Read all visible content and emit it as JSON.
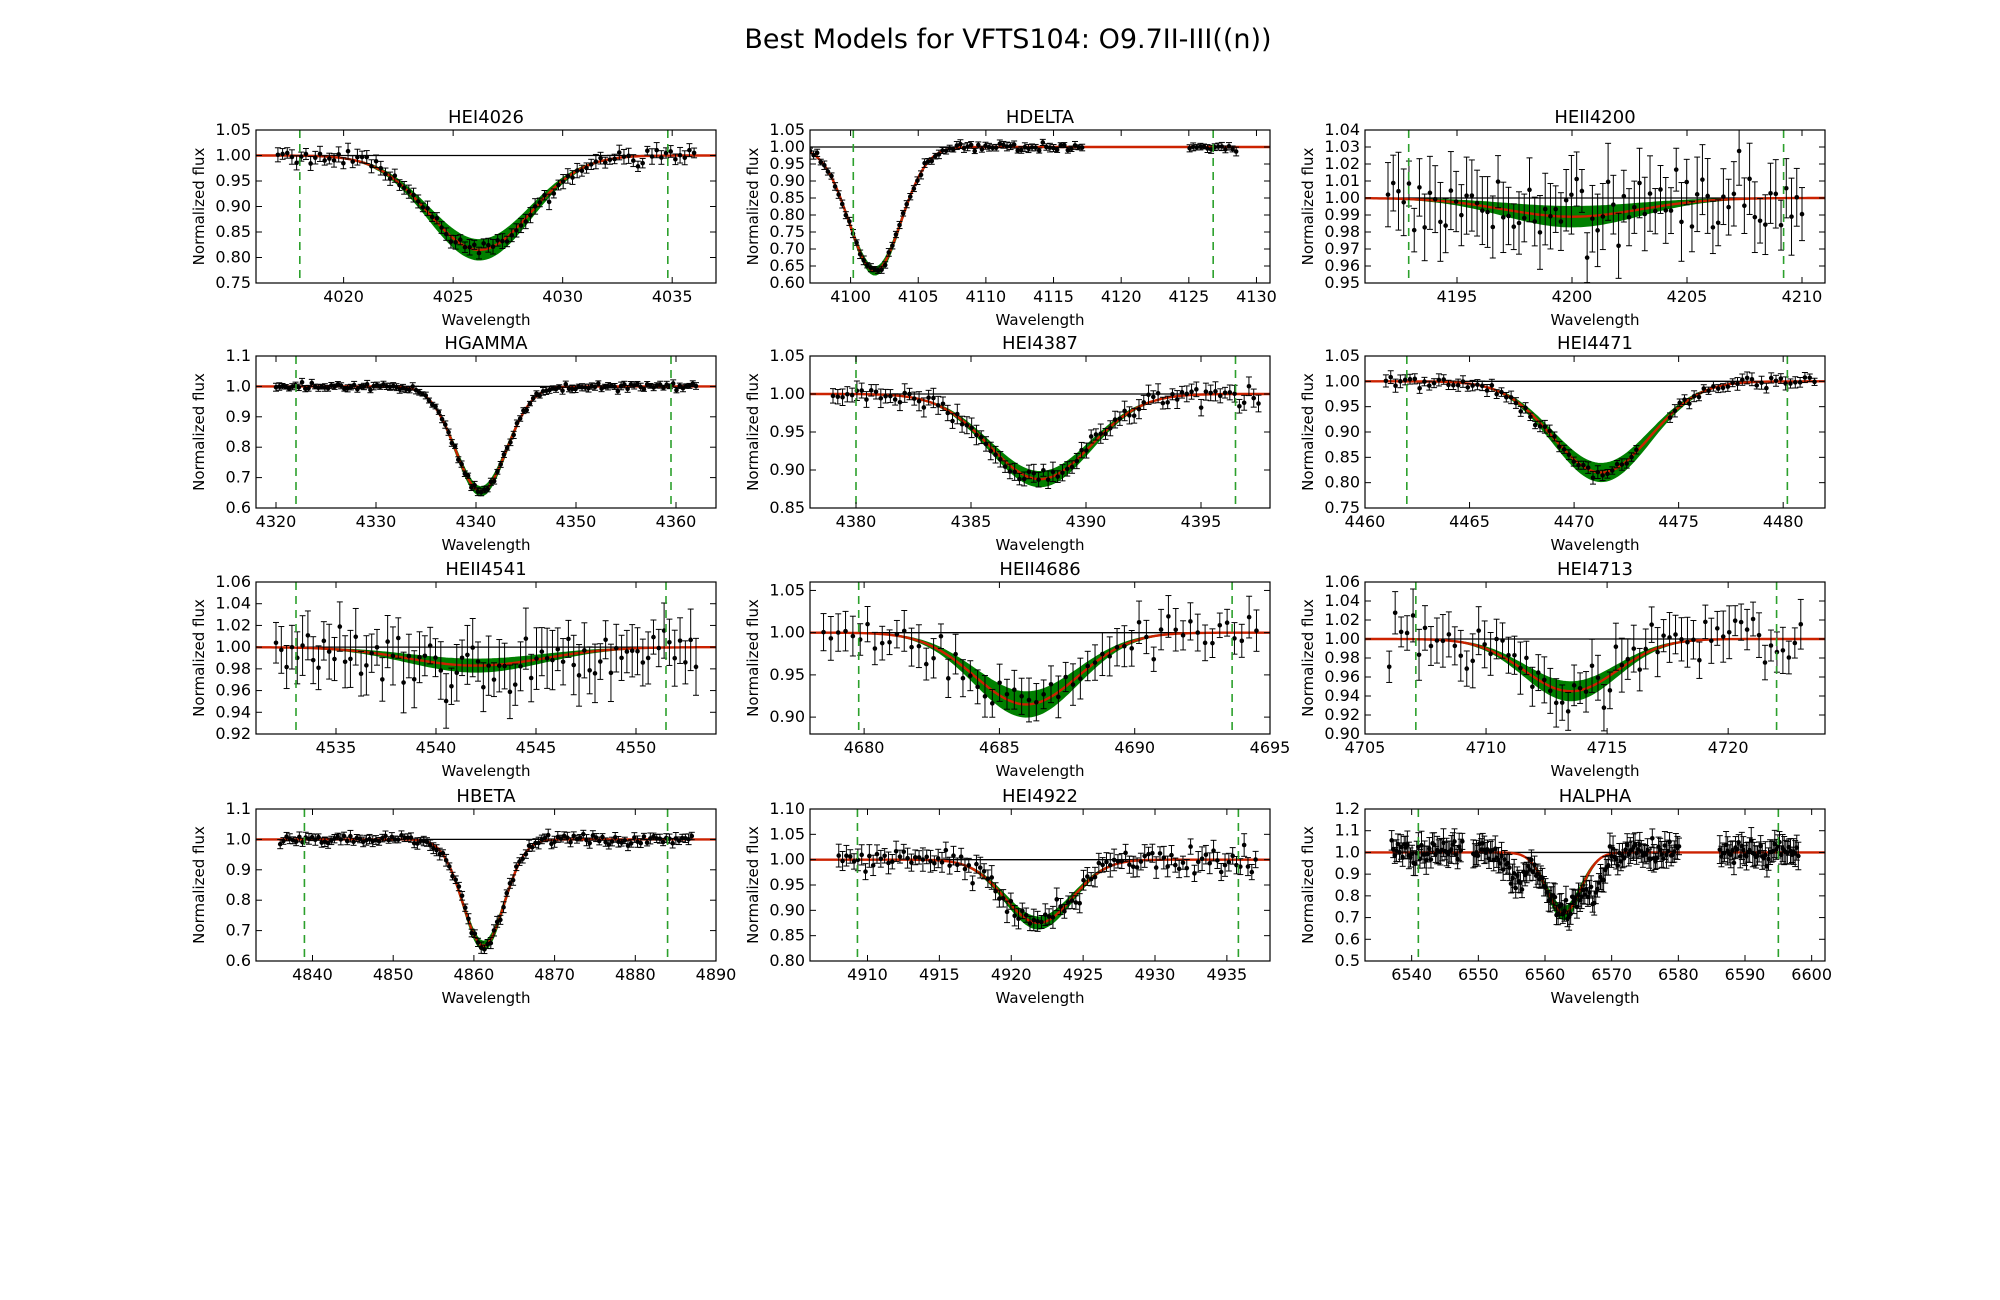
{
  "figure_title": "Best Models for VFTS104: O9.7II-III((n))",
  "colors": {
    "data": "#000000",
    "model_best": "#cc2200",
    "model_band": "#008000",
    "line_limits": "#2ca02c",
    "continuum": "#000000"
  },
  "chart_data": [
    {
      "type": "line",
      "title": "HEI4026",
      "xlabel": "Wavelength",
      "ylabel": "Normalized flux",
      "xlim": [
        4016,
        4037
      ],
      "ylim": [
        0.75,
        1.05
      ],
      "xticks": [
        4020,
        4025,
        4030,
        4035
      ],
      "yticks": [
        0.75,
        0.8,
        0.85,
        0.9,
        0.95,
        1.0,
        1.05
      ],
      "ytick_decimals": 2,
      "line_center": 4026.2,
      "min_flux": 0.815,
      "fwhm": 5.5,
      "band_halfwidth": 0.02,
      "limits": [
        4018.0,
        4034.8
      ],
      "data_range": [
        4017.0,
        4036.0
      ],
      "n_points": 90,
      "error": 0.012,
      "gaps": []
    },
    {
      "type": "line",
      "title": "HDELTA",
      "xlabel": "Wavelength",
      "ylabel": "Normalized flux",
      "xlim": [
        4097,
        4131
      ],
      "ylim": [
        0.6,
        1.05
      ],
      "xticks": [
        4100,
        4105,
        4110,
        4115,
        4120,
        4125,
        4130
      ],
      "yticks": [
        0.6,
        0.65,
        0.7,
        0.75,
        0.8,
        0.85,
        0.9,
        0.95,
        1.0,
        1.05
      ],
      "ytick_decimals": 2,
      "line_center": 4101.8,
      "min_flux": 0.635,
      "fwhm": 4.5,
      "band_halfwidth": 0.012,
      "limits": [
        4100.2,
        4126.8
      ],
      "data_range": [
        4097.0,
        4128.5
      ],
      "n_points": 120,
      "error": 0.01,
      "gaps": [
        [
          4117.2,
          4124.8
        ]
      ]
    },
    {
      "type": "line",
      "title": "HEII4200",
      "xlabel": "Wavelength",
      "ylabel": "Normalized flux",
      "xlim": [
        4191,
        4211
      ],
      "ylim": [
        0.95,
        1.04
      ],
      "xticks": [
        4195,
        4200,
        4205,
        4210
      ],
      "yticks": [
        0.95,
        0.96,
        0.97,
        0.98,
        0.99,
        1.0,
        1.01,
        1.02,
        1.03,
        1.04
      ],
      "ytick_decimals": 2,
      "line_center": 4200.0,
      "min_flux": 0.989,
      "fwhm": 7.0,
      "band_halfwidth": 0.006,
      "limits": [
        4192.9,
        4209.2
      ],
      "data_range": [
        4192.0,
        4210.0
      ],
      "n_points": 80,
      "error": 0.018,
      "gaps": []
    },
    {
      "type": "line",
      "title": "HGAMMA",
      "xlabel": "Wavelength",
      "ylabel": "Normalized flux",
      "xlim": [
        4318,
        4364
      ],
      "ylim": [
        0.6,
        1.1
      ],
      "xticks": [
        4320,
        4330,
        4340,
        4350,
        4360
      ],
      "yticks": [
        0.6,
        0.7,
        0.8,
        0.9,
        1.0,
        1.1
      ],
      "ytick_decimals": 1,
      "line_center": 4340.5,
      "min_flux": 0.655,
      "fwhm": 6.0,
      "band_halfwidth": 0.015,
      "limits": [
        4322.0,
        4359.5
      ],
      "data_range": [
        4320.0,
        4362.0
      ],
      "n_points": 130,
      "error": 0.01,
      "gaps": []
    },
    {
      "type": "line",
      "title": "HEI4387",
      "xlabel": "Wavelength",
      "ylabel": "Normalized flux",
      "xlim": [
        4378,
        4398
      ],
      "ylim": [
        0.85,
        1.05
      ],
      "xticks": [
        4380,
        4385,
        4390,
        4395
      ],
      "yticks": [
        0.85,
        0.9,
        0.95,
        1.0,
        1.05
      ],
      "ytick_decimals": 2,
      "line_center": 4388.0,
      "min_flux": 0.888,
      "fwhm": 5.2,
      "band_halfwidth": 0.01,
      "limits": [
        4380.0,
        4396.5
      ],
      "data_range": [
        4379.0,
        4397.5
      ],
      "n_points": 90,
      "error": 0.01,
      "gaps": []
    },
    {
      "type": "line",
      "title": "HEI4471",
      "xlabel": "Wavelength",
      "ylabel": "Normalized flux",
      "xlim": [
        4460,
        4482
      ],
      "ylim": [
        0.75,
        1.05
      ],
      "xticks": [
        4460,
        4465,
        4470,
        4475,
        4480
      ],
      "yticks": [
        0.75,
        0.8,
        0.85,
        0.9,
        0.95,
        1.0,
        1.05
      ],
      "ytick_decimals": 2,
      "line_center": 4471.3,
      "min_flux": 0.82,
      "fwhm": 5.5,
      "band_halfwidth": 0.018,
      "limits": [
        4462.0,
        4480.2
      ],
      "data_range": [
        4461.0,
        4481.5
      ],
      "n_points": 90,
      "error": 0.01,
      "gaps": [
        [
          4473.2,
          4474.4
        ]
      ]
    },
    {
      "type": "line",
      "title": "HEII4541",
      "xlabel": "Wavelength",
      "ylabel": "Normalized flux",
      "xlim": [
        4531,
        4554
      ],
      "ylim": [
        0.92,
        1.06
      ],
      "xticks": [
        4535,
        4540,
        4545,
        4550
      ],
      "yticks": [
        0.92,
        0.94,
        0.96,
        0.98,
        1.0,
        1.02,
        1.04,
        1.06
      ],
      "ytick_decimals": 2,
      "line_center": 4542.0,
      "min_flux": 0.983,
      "fwhm": 8.0,
      "band_halfwidth": 0.006,
      "limits": [
        4533.0,
        4551.5
      ],
      "data_range": [
        4532.0,
        4553.0
      ],
      "n_points": 80,
      "error": 0.022,
      "gaps": []
    },
    {
      "type": "line",
      "title": "HEII4686",
      "xlabel": "Wavelength",
      "ylabel": "Normalized flux",
      "xlim": [
        4678,
        4695
      ],
      "ylim": [
        0.88,
        1.06
      ],
      "xticks": [
        4680,
        4685,
        4690,
        4695
      ],
      "yticks": [
        0.9,
        0.95,
        1.0,
        1.05
      ],
      "ytick_decimals": 2,
      "line_center": 4686.0,
      "min_flux": 0.915,
      "fwhm": 4.5,
      "band_halfwidth": 0.015,
      "limits": [
        4679.8,
        4693.6
      ],
      "data_range": [
        4678.5,
        4694.5
      ],
      "n_points": 60,
      "error": 0.02,
      "gaps": []
    },
    {
      "type": "line",
      "title": "HEI4713",
      "xlabel": "Wavelength",
      "ylabel": "Normalized flux",
      "xlim": [
        4705,
        4724
      ],
      "ylim": [
        0.9,
        1.06
      ],
      "xticks": [
        4705,
        4710,
        4715,
        4720
      ],
      "yticks": [
        0.9,
        0.92,
        0.94,
        0.96,
        0.98,
        1.0,
        1.02,
        1.04,
        1.06
      ],
      "ytick_decimals": 2,
      "line_center": 4713.5,
      "min_flux": 0.945,
      "fwhm": 4.5,
      "band_halfwidth": 0.01,
      "limits": [
        4707.1,
        4722.0
      ],
      "data_range": [
        4706.0,
        4723.0
      ],
      "n_points": 70,
      "error": 0.022,
      "gaps": []
    },
    {
      "type": "line",
      "title": "HBETA",
      "xlabel": "Wavelength",
      "ylabel": "Normalized flux",
      "xlim": [
        4833,
        4890
      ],
      "ylim": [
        0.6,
        1.1
      ],
      "xticks": [
        4840,
        4850,
        4860,
        4870,
        4880,
        4890
      ],
      "yticks": [
        0.6,
        0.7,
        0.8,
        0.9,
        1.0,
        1.1
      ],
      "ytick_decimals": 1,
      "line_center": 4861.2,
      "min_flux": 0.65,
      "fwhm": 6.0,
      "band_halfwidth": 0.015,
      "limits": [
        4839.0,
        4884.0
      ],
      "data_range": [
        4836.0,
        4887.0
      ],
      "n_points": 130,
      "error": 0.015,
      "gaps": []
    },
    {
      "type": "line",
      "title": "HEI4922",
      "xlabel": "Wavelength",
      "ylabel": "Normalized flux",
      "xlim": [
        4906,
        4938
      ],
      "ylim": [
        0.8,
        1.1
      ],
      "xticks": [
        4910,
        4915,
        4920,
        4925,
        4930,
        4935
      ],
      "yticks": [
        0.8,
        0.85,
        0.9,
        0.95,
        1.0,
        1.05,
        1.1
      ],
      "ytick_decimals": 2,
      "line_center": 4921.9,
      "min_flux": 0.875,
      "fwhm": 5.5,
      "band_halfwidth": 0.012,
      "limits": [
        4909.3,
        4935.8
      ],
      "data_range": [
        4908.0,
        4937.0
      ],
      "n_points": 110,
      "error": 0.018,
      "gaps": []
    },
    {
      "type": "line",
      "title": "HALPHA",
      "xlabel": "Wavelength",
      "ylabel": "Normalized flux",
      "xlim": [
        6533,
        6602
      ],
      "ylim": [
        0.5,
        1.2
      ],
      "xticks": [
        6540,
        6550,
        6560,
        6570,
        6580,
        6590,
        6600
      ],
      "yticks": [
        0.5,
        0.6,
        0.7,
        0.8,
        0.9,
        1.0,
        1.1,
        1.2
      ],
      "ytick_decimals": 1,
      "line_center": 6562.8,
      "min_flux": 0.72,
      "fwhm": 6.0,
      "band_halfwidth": 0.03,
      "limits": [
        6541.0,
        6595.0
      ],
      "data_range": [
        6537.0,
        6598.0
      ],
      "n_points": 260,
      "error": 0.05,
      "gaps": [
        [
          6547.7,
          6549.2
        ],
        [
          6580.3,
          6586.0
        ]
      ]
    }
  ]
}
